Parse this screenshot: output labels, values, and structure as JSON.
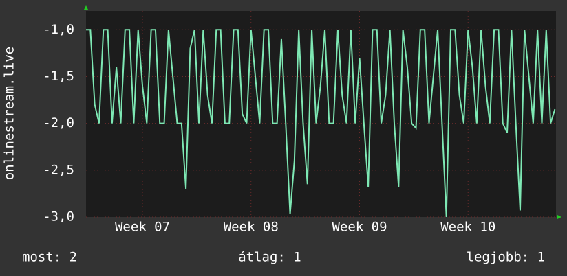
{
  "chart_data": {
    "type": "line",
    "y_label": "onlinestream.live",
    "x": [
      6.48,
      6.52,
      6.56,
      6.6,
      6.64,
      6.68,
      6.72,
      6.76,
      6.8,
      6.84,
      6.88,
      6.92,
      6.96,
      7,
      7.04,
      7.08,
      7.12,
      7.16,
      7.2,
      7.24,
      7.28,
      7.32,
      7.36,
      7.4,
      7.44,
      7.48,
      7.52,
      7.56,
      7.6,
      7.64,
      7.68,
      7.72,
      7.76,
      7.8,
      7.84,
      7.88,
      7.92,
      7.96,
      8,
      8.04,
      8.08,
      8.12,
      8.16,
      8.2,
      8.24,
      8.28,
      8.32,
      8.36,
      8.4,
      8.44,
      8.48,
      8.52,
      8.56,
      8.6,
      8.64,
      8.68,
      8.72,
      8.76,
      8.8,
      8.84,
      8.88,
      8.92,
      8.96,
      9,
      9.04,
      9.08,
      9.12,
      9.16,
      9.2,
      9.24,
      9.28,
      9.32,
      9.36,
      9.4,
      9.44,
      9.48,
      9.52,
      9.56,
      9.6,
      9.64,
      9.68,
      9.72,
      9.76,
      9.8,
      9.84,
      9.88,
      9.92,
      9.96,
      10,
      10.04,
      10.08,
      10.12,
      10.16,
      10.2,
      10.24,
      10.28,
      10.32,
      10.36,
      10.4,
      10.44,
      10.48,
      10.52,
      10.56,
      10.6,
      10.64,
      10.68,
      10.72,
      10.76,
      10.8
    ],
    "series": [
      {
        "color": "#7ee8b4",
        "values": [
          -1,
          -1,
          -1.8,
          -2,
          -1,
          -1,
          -2,
          -1.4,
          -2,
          -1,
          -1,
          -2,
          -1,
          -1.6,
          -2,
          -1,
          -1,
          -2,
          -2,
          -1,
          -1.5,
          -2,
          -2,
          -2.7,
          -1.2,
          -1,
          -2,
          -1,
          -1.7,
          -2,
          -1,
          -1,
          -2,
          -2,
          -1,
          -1,
          -1.9,
          -2,
          -1,
          -1.5,
          -2,
          -1,
          -1,
          -2,
          -2,
          -1.1,
          -2,
          -2.97,
          -2.4,
          -1,
          -2,
          -2.65,
          -1,
          -2,
          -1.6,
          -1,
          -2,
          -2,
          -1,
          -1.7,
          -2,
          -1,
          -2,
          -1.3,
          -2,
          -2.68,
          -1,
          -1,
          -2,
          -1.7,
          -1,
          -2,
          -2.68,
          -1,
          -1.4,
          -2,
          -2.05,
          -1,
          -1,
          -2,
          -1.5,
          -1,
          -2,
          -3,
          -1,
          -1,
          -1.7,
          -2,
          -1,
          -1.4,
          -2,
          -1,
          -1.6,
          -2,
          -1,
          -1,
          -2,
          -2.1,
          -1,
          -2,
          -2.93,
          -1,
          -1.5,
          -2,
          -1,
          -2,
          -1,
          -2,
          -1.85
        ]
      }
    ],
    "xlim": [
      6.48,
      10.81
    ],
    "xticks": [
      {
        "value": 7,
        "label": "Week 07"
      },
      {
        "value": 8,
        "label": "Week 08"
      },
      {
        "value": 9,
        "label": "Week 09"
      },
      {
        "value": 10,
        "label": "Week 10"
      }
    ],
    "ylim": [
      -3,
      -0.8
    ],
    "yticks": [
      {
        "value": -3,
        "label": "-3,0"
      },
      {
        "value": -2.5,
        "label": "-2,5"
      },
      {
        "value": -2,
        "label": "-2,0"
      },
      {
        "value": -1.5,
        "label": "-1,5"
      },
      {
        "value": -1,
        "label": "-1,0"
      }
    ],
    "grid": true,
    "footer": [
      "most: 2",
      "átlag: 1",
      "legjobb: 1"
    ]
  }
}
